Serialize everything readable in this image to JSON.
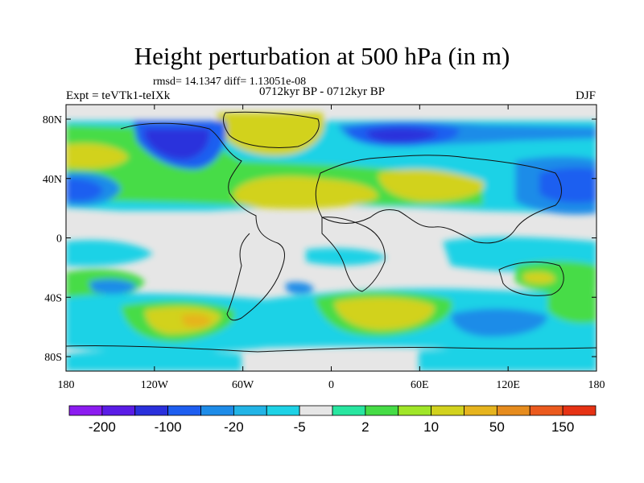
{
  "chart_data": {
    "type": "heatmap",
    "title": "Height perturbation at 500 hPa (in m)",
    "stats_line": "rmsd= 14.1347 diff= 1.13051e-08",
    "experiment": "Expt = teVTk1-teIXk",
    "period": "0712kyr BP - 0712kyr BP",
    "season": "DJF",
    "x_ticks": [
      "180",
      "120W",
      "60W",
      "0",
      "60E",
      "120E",
      "180"
    ],
    "y_ticks": [
      "80N",
      "40N",
      "0",
      "40S",
      "80S"
    ],
    "colorbar": {
      "labels": [
        "-200",
        "-100",
        "-20",
        "-5",
        "2",
        "10",
        "50",
        "150"
      ],
      "colors": [
        "#8c1cf0",
        "#5a1ce6",
        "#2a30dc",
        "#1e5ef0",
        "#1e8ce8",
        "#22b4e6",
        "#1ed2e6",
        "#e6e6e6",
        "#28e6a0",
        "#46dc46",
        "#a0e628",
        "#d2d21e",
        "#e6b41e",
        "#e68c1e",
        "#eb5a1e",
        "#e63214"
      ]
    },
    "grid": false
  }
}
